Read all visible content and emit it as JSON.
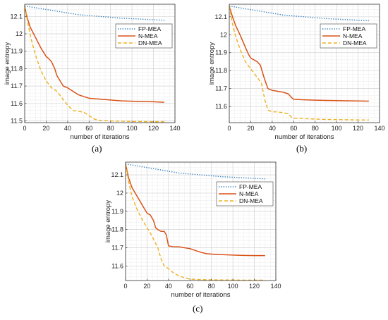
{
  "chart_data": [
    {
      "id": "a",
      "type": "line",
      "caption": "(a)",
      "xlabel": "number of iterations",
      "ylabel": "image entropy",
      "xlim": [
        0,
        140
      ],
      "ylim": [
        11.49,
        12.17
      ],
      "xticks": [
        "0",
        "20",
        "40",
        "60",
        "80",
        "100",
        "120",
        "140"
      ],
      "yticks": [
        "11.5",
        "11.6",
        "11.7",
        "11.8",
        "11.9",
        "12",
        "12.1"
      ],
      "grid": true,
      "legend_position": "top-right",
      "series": [
        {
          "name": "FP-MEA",
          "color": "#2e7fbf",
          "style": "dotted",
          "x": [
            0,
            10,
            20,
            30,
            40,
            50,
            60,
            70,
            80,
            90,
            100,
            110,
            120,
            130
          ],
          "y": [
            12.16,
            12.15,
            12.14,
            12.13,
            12.12,
            12.11,
            12.105,
            12.1,
            12.095,
            12.09,
            12.087,
            12.084,
            12.081,
            12.078
          ]
        },
        {
          "name": "N-MEA",
          "color": "#d95319",
          "style": "solid",
          "x": [
            0,
            2,
            5,
            10,
            15,
            18,
            20,
            22,
            25,
            28,
            30,
            33,
            36,
            40,
            45,
            50,
            55,
            60,
            70,
            80,
            90,
            100,
            110,
            120,
            130
          ],
          "y": [
            12.16,
            12.1,
            12.04,
            11.98,
            11.92,
            11.89,
            11.87,
            11.86,
            11.84,
            11.8,
            11.76,
            11.73,
            11.7,
            11.69,
            11.67,
            11.65,
            11.64,
            11.63,
            11.625,
            11.62,
            11.615,
            11.613,
            11.611,
            11.61,
            11.607
          ]
        },
        {
          "name": "DN-MEA",
          "color": "#edb120",
          "style": "dashed",
          "x": [
            0,
            3,
            6,
            10,
            15,
            20,
            25,
            30,
            35,
            40,
            45,
            50,
            55,
            60,
            65,
            70,
            80,
            90,
            100,
            110,
            120,
            130
          ],
          "y": [
            12.16,
            12.06,
            11.97,
            11.88,
            11.79,
            11.73,
            11.69,
            11.67,
            11.63,
            11.59,
            11.56,
            11.555,
            11.55,
            11.53,
            11.51,
            11.503,
            11.5,
            11.498,
            11.497,
            11.496,
            11.495,
            11.495
          ]
        }
      ]
    },
    {
      "id": "b",
      "type": "line",
      "caption": "(b)",
      "xlabel": "number of iterations",
      "ylabel": "image entropy",
      "xlim": [
        0,
        140
      ],
      "ylim": [
        11.51,
        12.17
      ],
      "xticks": [
        "0",
        "20",
        "40",
        "60",
        "80",
        "100",
        "120",
        "140"
      ],
      "yticks": [
        "11.6",
        "11.7",
        "11.8",
        "11.9",
        "12",
        "12.1"
      ],
      "grid": true,
      "legend_position": "top-right",
      "series": [
        {
          "name": "FP-MEA",
          "color": "#2e7fbf",
          "style": "dotted",
          "x": [
            0,
            10,
            20,
            30,
            40,
            50,
            60,
            70,
            80,
            90,
            100,
            110,
            120,
            130
          ],
          "y": [
            12.16,
            12.15,
            12.14,
            12.13,
            12.12,
            12.11,
            12.105,
            12.1,
            12.095,
            12.09,
            12.087,
            12.084,
            12.081,
            12.078
          ]
        },
        {
          "name": "N-MEA",
          "color": "#d95319",
          "style": "solid",
          "x": [
            0,
            3,
            6,
            10,
            15,
            18,
            20,
            23,
            26,
            29,
            31,
            33,
            36,
            40,
            45,
            50,
            55,
            58,
            60,
            70,
            80,
            90,
            100,
            110,
            120,
            130
          ],
          "y": [
            12.16,
            12.1,
            12.05,
            12.0,
            11.93,
            11.89,
            11.87,
            11.86,
            11.85,
            11.83,
            11.79,
            11.75,
            11.7,
            11.69,
            11.685,
            11.68,
            11.67,
            11.65,
            11.64,
            11.637,
            11.635,
            11.634,
            11.633,
            11.632,
            11.631,
            11.63
          ]
        },
        {
          "name": "DN-MEA",
          "color": "#edb120",
          "style": "dashed",
          "x": [
            0,
            3,
            6,
            10,
            15,
            20,
            25,
            30,
            33,
            36,
            40,
            45,
            50,
            55,
            58,
            60,
            70,
            80,
            90,
            100,
            110,
            120,
            130
          ],
          "y": [
            12.16,
            12.06,
            11.99,
            11.92,
            11.85,
            11.81,
            11.77,
            11.73,
            11.64,
            11.58,
            11.57,
            11.57,
            11.565,
            11.56,
            11.54,
            11.535,
            11.532,
            11.53,
            11.528,
            11.527,
            11.526,
            11.525,
            11.525
          ]
        }
      ]
    },
    {
      "id": "c",
      "type": "line",
      "caption": "(c)",
      "xlabel": "number of iterations",
      "ylabel": "image entropy",
      "xlim": [
        0,
        140
      ],
      "ylim": [
        11.52,
        12.17
      ],
      "xticks": [
        "0",
        "20",
        "40",
        "60",
        "80",
        "100",
        "120",
        "140"
      ],
      "yticks": [
        "11.6",
        "11.7",
        "11.8",
        "11.9",
        "12",
        "12.1"
      ],
      "grid": true,
      "legend_position": "top-right",
      "series": [
        {
          "name": "FP-MEA",
          "color": "#2e7fbf",
          "style": "dotted",
          "x": [
            0,
            10,
            20,
            30,
            40,
            50,
            60,
            70,
            80,
            90,
            100,
            110,
            120,
            130
          ],
          "y": [
            12.16,
            12.15,
            12.14,
            12.13,
            12.12,
            12.11,
            12.105,
            12.1,
            12.095,
            12.09,
            12.087,
            12.084,
            12.081,
            12.078
          ]
        },
        {
          "name": "N-MEA",
          "color": "#d95319",
          "style": "solid",
          "x": [
            0,
            3,
            6,
            10,
            15,
            20,
            23,
            26,
            28,
            30,
            33,
            36,
            38,
            40,
            45,
            50,
            55,
            60,
            65,
            70,
            75,
            80,
            90,
            100,
            110,
            120,
            130
          ],
          "y": [
            12.16,
            12.08,
            12.03,
            11.99,
            11.94,
            11.89,
            11.88,
            11.85,
            11.81,
            11.8,
            11.79,
            11.79,
            11.77,
            11.71,
            11.705,
            11.705,
            11.7,
            11.695,
            11.685,
            11.675,
            11.668,
            11.665,
            11.662,
            11.66,
            11.658,
            11.657,
            11.657
          ]
        },
        {
          "name": "DN-MEA",
          "color": "#edb120",
          "style": "dashed",
          "x": [
            0,
            3,
            6,
            10,
            15,
            20,
            25,
            30,
            33,
            36,
            40,
            45,
            50,
            55,
            60,
            70,
            80,
            90,
            100,
            110,
            120,
            130
          ],
          "y": [
            12.16,
            12.06,
            11.98,
            11.92,
            11.86,
            11.81,
            11.76,
            11.7,
            11.64,
            11.6,
            11.585,
            11.56,
            11.545,
            11.535,
            11.528,
            11.525,
            11.524,
            11.523,
            11.523,
            11.522,
            11.522,
            11.522
          ]
        }
      ]
    }
  ]
}
